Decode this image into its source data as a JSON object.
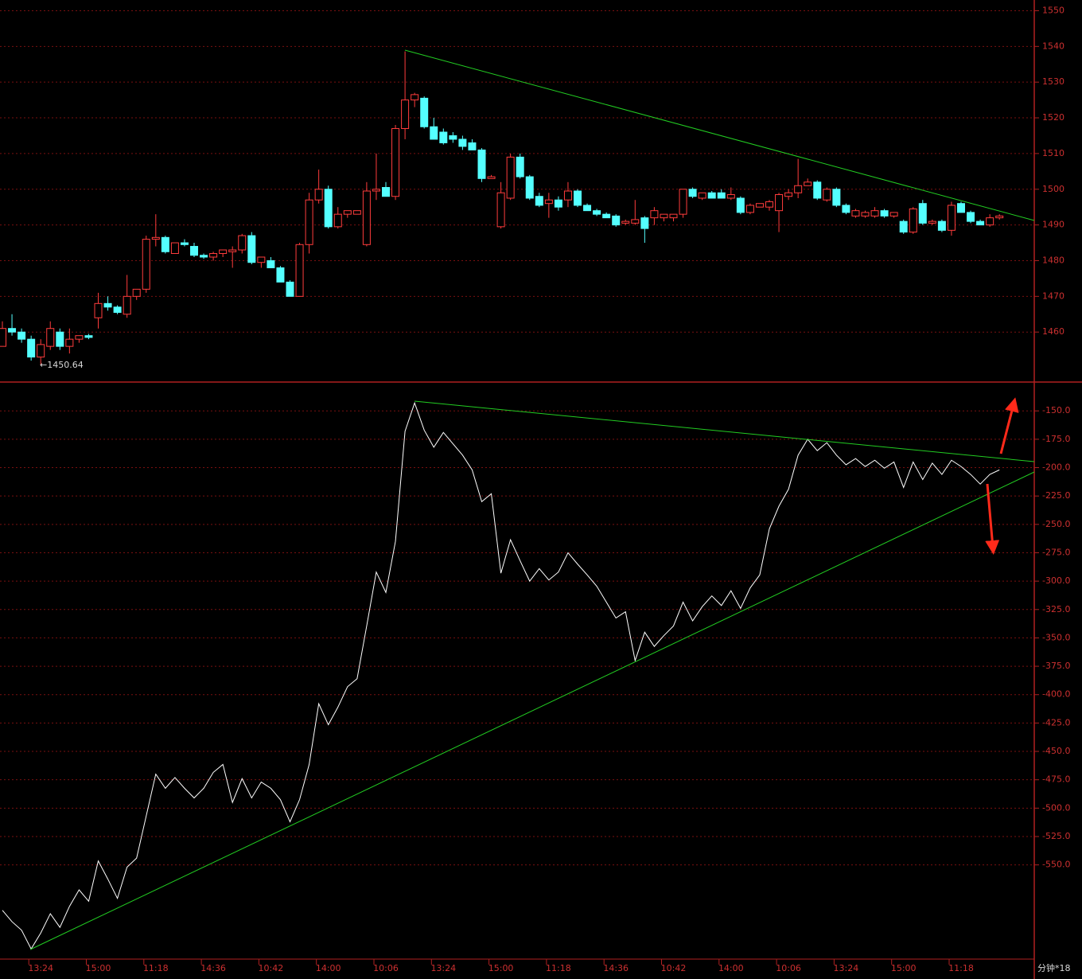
{
  "chart_data": [
    {
      "type": "candlestick",
      "annotation": "←1450.64",
      "up_color": "#ff3c3c",
      "down_color": "#54ffff",
      "open": [
        1456,
        1461,
        1460,
        1458,
        1453,
        1456,
        1460,
        1456,
        1458,
        1459,
        1464,
        1468,
        1467,
        1465,
        1470,
        1472,
        1486,
        1486.5,
        1482,
        1485,
        1484,
        1481.5,
        1481,
        1482,
        1482.5,
        1483,
        1487,
        1479.5,
        1480,
        1478,
        1474,
        1470,
        1484.5,
        1497,
        1500,
        1489.5,
        1493,
        1493,
        1484.5,
        1499.5,
        1500.5,
        1498,
        1517,
        1525,
        1525.5,
        1517.5,
        1516,
        1515,
        1514,
        1513,
        1511,
        1503,
        1489.5,
        1497.5,
        1509,
        1503.5,
        1498,
        1496,
        1497,
        1497,
        1499.5,
        1495.5,
        1494,
        1493,
        1492.5,
        1490.5,
        1490.5,
        1492,
        1492,
        1492,
        1492,
        1493,
        1500,
        1497.5,
        1499,
        1499,
        1497.5,
        1497.5,
        1493.5,
        1495,
        1495,
        1494,
        1498,
        1499,
        1501,
        1502,
        1497,
        1500,
        1495.5,
        1492.5,
        1492.5,
        1492.5,
        1494,
        1492.5,
        1491,
        1488,
        1496,
        1490.5,
        1491,
        1488.5,
        1496,
        1493.5,
        1491,
        1490,
        1492
      ],
      "high": [
        1463,
        1465,
        1461,
        1459,
        1458,
        1463,
        1461,
        1461,
        1459,
        1459.5,
        1471,
        1470,
        1467.5,
        1476,
        1472,
        1487,
        1493,
        1487,
        1485,
        1486,
        1485,
        1482,
        1482.5,
        1483,
        1484,
        1487.5,
        1488,
        1481,
        1481,
        1478.5,
        1474.5,
        1485,
        1499,
        1505.5,
        1501,
        1495,
        1494,
        1494,
        1502,
        1510,
        1502,
        1518,
        1538.6,
        1527,
        1526,
        1520,
        1517,
        1516,
        1515,
        1514,
        1511.5,
        1504,
        1502,
        1510,
        1510,
        1504,
        1499,
        1499,
        1498,
        1502,
        1500,
        1496,
        1494.5,
        1493.5,
        1493,
        1491.5,
        1497,
        1492.5,
        1495,
        1493,
        1493,
        1500,
        1500.5,
        1499,
        1499.5,
        1500,
        1500.5,
        1498,
        1496,
        1496,
        1497,
        1499,
        1500,
        1508.5,
        1503,
        1502.5,
        1500.5,
        1500.5,
        1496,
        1494.5,
        1494,
        1495,
        1494.5,
        1493.5,
        1491.5,
        1495,
        1497,
        1491.5,
        1491.5,
        1496.5,
        1496.5,
        1494,
        1491.5,
        1493,
        1493
      ],
      "low": [
        1456,
        1459,
        1457,
        1452,
        1450.64,
        1455,
        1455,
        1454,
        1457,
        1458,
        1461,
        1466,
        1465,
        1464,
        1469,
        1471,
        1484,
        1482,
        1482,
        1484,
        1481,
        1480.5,
        1480,
        1481,
        1478,
        1482,
        1479,
        1478,
        1478,
        1474,
        1470,
        1470,
        1482,
        1496,
        1489,
        1489,
        1492,
        1493,
        1484,
        1497,
        1498,
        1497,
        1514,
        1523,
        1517,
        1514,
        1512.5,
        1513,
        1511,
        1511,
        1502,
        1503,
        1489,
        1497,
        1503,
        1497,
        1495,
        1492,
        1494,
        1495,
        1495,
        1494,
        1492.5,
        1492,
        1489.5,
        1490,
        1490,
        1485,
        1490,
        1491,
        1491,
        1492,
        1497.5,
        1497,
        1497.5,
        1497.5,
        1497,
        1493,
        1493,
        1495,
        1494,
        1488,
        1497,
        1497.5,
        1501,
        1497,
        1496.5,
        1495,
        1493,
        1492,
        1492,
        1492,
        1492,
        1492,
        1487.5,
        1487.5,
        1490,
        1490,
        1488,
        1487,
        1493.5,
        1490.5,
        1490,
        1489.5,
        1491.5
      ],
      "close": [
        1461,
        1460,
        1458,
        1453,
        1456.5,
        1461,
        1456,
        1458,
        1459,
        1458.5,
        1468,
        1467,
        1465.5,
        1470,
        1472,
        1486,
        1486.5,
        1482.5,
        1485,
        1484.5,
        1481.5,
        1481,
        1482,
        1483,
        1483,
        1487,
        1479.5,
        1481,
        1478,
        1474,
        1470,
        1484.5,
        1497,
        1500,
        1489.5,
        1493,
        1494,
        1494,
        1499.5,
        1500,
        1498,
        1517,
        1525,
        1526.5,
        1517.5,
        1514,
        1513,
        1514,
        1512,
        1511,
        1503,
        1503.5,
        1499,
        1509,
        1503.5,
        1497.5,
        1495.5,
        1497,
        1495,
        1499.5,
        1495.5,
        1494,
        1493,
        1492,
        1490,
        1491,
        1491.5,
        1489,
        1494,
        1493,
        1493,
        1500,
        1498,
        1499,
        1497.5,
        1497.5,
        1498.5,
        1493.5,
        1495.5,
        1496,
        1496.5,
        1498.5,
        1499,
        1501,
        1502,
        1497.5,
        1500,
        1495.5,
        1493.5,
        1494,
        1493.5,
        1494,
        1492.5,
        1493.5,
        1488,
        1494.5,
        1490.5,
        1491,
        1488.5,
        1495.5,
        1493.5,
        1491,
        1490,
        1492,
        1492.5
      ],
      "ylim": [
        1446,
        1553
      ],
      "yticks": [
        1460,
        1470,
        1480,
        1490,
        1500,
        1510,
        1520,
        1530,
        1540,
        1550
      ],
      "grid": true
    },
    {
      "type": "line",
      "color": "#ffffff",
      "categories": [
        null,
        null,
        null,
        null,
        "13:24",
        null,
        null,
        null,
        null,
        null,
        "15:00",
        null,
        null,
        null,
        null,
        null,
        "11:18",
        null,
        null,
        null,
        null,
        null,
        "14:36",
        null,
        null,
        null,
        null,
        null,
        "10:42",
        null,
        null,
        null,
        null,
        null,
        "14:00",
        null,
        null,
        null,
        null,
        null,
        "10:06",
        null,
        null,
        null,
        null,
        null,
        "13:24",
        null,
        null,
        null,
        null,
        null,
        "15:00",
        null,
        null,
        null,
        null,
        null,
        "11:18",
        null,
        null,
        null,
        null,
        null,
        "14:36",
        null,
        null,
        null,
        null,
        null,
        "10:42",
        null,
        null,
        null,
        null,
        null,
        "14:00",
        null,
        null,
        null,
        null,
        null,
        "10:06",
        null,
        null,
        null,
        null,
        null,
        "13:24",
        null,
        null,
        null,
        null,
        null,
        "15:00",
        null,
        null,
        null,
        null,
        null,
        "11:18",
        null,
        null,
        null,
        null
      ],
      "values": [
        -590,
        -600,
        -607.5,
        -624,
        -610,
        -593,
        -605,
        -586.5,
        -572,
        -582,
        -546.5,
        -562.5,
        -579.5,
        -552,
        -544,
        -507,
        -470,
        -482.5,
        -473,
        -482.5,
        -491,
        -482.5,
        -468.5,
        -461.5,
        -495,
        -474,
        -491,
        -477,
        -482.5,
        -492.5,
        -512,
        -492.5,
        -461.5,
        -408,
        -426.5,
        -411,
        -393,
        -386,
        -339.5,
        -292,
        -310,
        -265,
        -168,
        -143,
        -167,
        -182,
        -169,
        -179,
        -189,
        -202,
        -230,
        -223,
        -293,
        -263.5,
        -282,
        -300,
        -289,
        -299,
        -292,
        -275,
        -285,
        -294.5,
        -304.5,
        -318.5,
        -332.5,
        -327,
        -370,
        -345,
        -357.5,
        -348,
        -339.5,
        -318.5,
        -335,
        -322.5,
        -313,
        -321.5,
        -308.5,
        -324,
        -306,
        -294.5,
        -254,
        -234,
        -219,
        -189,
        -175,
        -185,
        -178,
        -189,
        -197.5,
        -192,
        -199,
        -193.5,
        -200.5,
        -195,
        -217.5,
        -195,
        -210.5,
        -196,
        -206,
        -193.5,
        -199,
        -206,
        -214.5,
        -206,
        -202
      ],
      "ylim": [
        -633,
        -126
      ],
      "yticks": [
        {
          "value": -150,
          "label": "-150.0"
        },
        {
          "value": -175,
          "label": "-175.0"
        },
        {
          "value": -200,
          "label": "-200.0"
        },
        {
          "value": -225,
          "label": "-225.0"
        },
        {
          "value": -250,
          "label": "-250.0"
        },
        {
          "value": -275,
          "label": "-275.0"
        },
        {
          "value": -300,
          "label": "-300.0"
        },
        {
          "value": -325,
          "label": "-325.0"
        },
        {
          "value": -350,
          "label": "-350.0"
        },
        {
          "value": -375,
          "label": "-375.0"
        },
        {
          "value": -400,
          "label": "-400.0"
        },
        {
          "value": -425,
          "label": "-425.0"
        },
        {
          "value": -450,
          "label": "-450.0"
        },
        {
          "value": -475,
          "label": "-475.0"
        },
        {
          "value": -500,
          "label": "-500.0"
        },
        {
          "value": -525,
          "label": "-525.0"
        },
        {
          "value": -550,
          "label": "-550.0"
        }
      ],
      "grid": true,
      "footer": "分钟*18"
    }
  ]
}
